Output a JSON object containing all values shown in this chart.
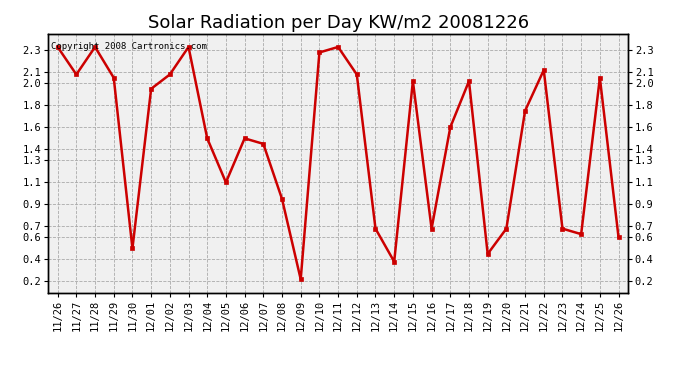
{
  "title": "Solar Radiation per Day KW/m2 20081226",
  "copyright_text": "Copyright 2008 Cartronics.com",
  "dates": [
    "11/26",
    "11/27",
    "11/28",
    "11/29",
    "11/30",
    "12/01",
    "12/02",
    "12/03",
    "12/04",
    "12/05",
    "12/06",
    "12/07",
    "12/08",
    "12/09",
    "12/10",
    "12/11",
    "12/12",
    "12/13",
    "12/14",
    "12/15",
    "12/16",
    "12/17",
    "12/18",
    "12/19",
    "12/20",
    "12/21",
    "12/22",
    "12/23",
    "12/24",
    "12/25",
    "12/26"
  ],
  "values": [
    2.33,
    2.08,
    2.33,
    2.05,
    0.5,
    1.95,
    2.08,
    2.33,
    1.5,
    1.1,
    1.5,
    1.45,
    0.95,
    0.22,
    2.28,
    2.33,
    2.08,
    0.68,
    0.38,
    2.02,
    0.68,
    1.6,
    2.02,
    0.45,
    0.68,
    1.75,
    2.12,
    0.68,
    0.63,
    2.05,
    0.6
  ],
  "line_color": "#cc0000",
  "marker": "s",
  "marker_size": 3,
  "line_width": 1.8,
  "bg_color": "#ffffff",
  "plot_bg_color": "#f0f0f0",
  "grid_color": "#aaaaaa",
  "ylim": [
    0.1,
    2.45
  ],
  "yticks": [
    0.2,
    0.4,
    0.6,
    0.7,
    0.9,
    1.1,
    1.3,
    1.4,
    1.6,
    1.8,
    2.0,
    2.1,
    2.3
  ],
  "title_fontsize": 13,
  "tick_fontsize": 7.5,
  "copyright_fontsize": 6.5
}
